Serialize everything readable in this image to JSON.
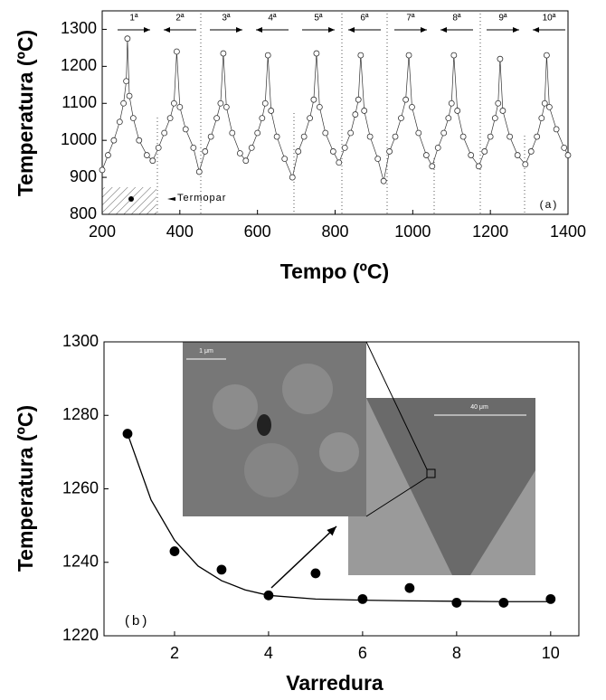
{
  "chart_data": [
    {
      "type": "line",
      "xlabel": "Tempo (ºC)",
      "ylabel": "Temperatura (ºC)",
      "xlim": [
        200,
        1400
      ],
      "ylim": [
        800,
        1350
      ],
      "xticks": [
        200,
        400,
        600,
        800,
        1000,
        1200,
        1400
      ],
      "yticks": [
        800,
        900,
        1000,
        1100,
        1200,
        1300
      ],
      "annotations": [
        "1ª",
        "2ª",
        "3ª",
        "4ª",
        "5ª",
        "6ª",
        "7ª",
        "8ª",
        "9ª",
        "10ª"
      ],
      "legend_text": "Termopar",
      "panel_label": "(a)",
      "series": [
        {
          "color": "#333333",
          "x": [
            200,
            215,
            230,
            245,
            255,
            262,
            265,
            270,
            280,
            295,
            315,
            330,
            345,
            360,
            375,
            385,
            392,
            400,
            415,
            435,
            450,
            465,
            480,
            495,
            505,
            512,
            520,
            535,
            555,
            570,
            585,
            600,
            612,
            620,
            627,
            635,
            650,
            670,
            690,
            705,
            720,
            735,
            745,
            752,
            760,
            775,
            795,
            810,
            825,
            840,
            852,
            860,
            866,
            875,
            890,
            910,
            925,
            940,
            955,
            970,
            982,
            990,
            998,
            1015,
            1035,
            1050,
            1065,
            1080,
            1092,
            1100,
            1106,
            1115,
            1130,
            1150,
            1170,
            1185,
            1200,
            1212,
            1220,
            1225,
            1232,
            1250,
            1270,
            1290,
            1305,
            1320,
            1332,
            1340,
            1345,
            1352,
            1370,
            1390,
            1400
          ],
          "values": [
            920,
            960,
            1000,
            1050,
            1100,
            1160,
            1275,
            1120,
            1060,
            1000,
            960,
            945,
            980,
            1020,
            1060,
            1100,
            1240,
            1090,
            1030,
            980,
            915,
            970,
            1010,
            1060,
            1100,
            1235,
            1090,
            1020,
            965,
            945,
            980,
            1020,
            1060,
            1100,
            1230,
            1080,
            1010,
            950,
            900,
            970,
            1010,
            1060,
            1110,
            1235,
            1090,
            1020,
            970,
            940,
            980,
            1020,
            1070,
            1110,
            1230,
            1080,
            1010,
            950,
            890,
            970,
            1010,
            1060,
            1110,
            1230,
            1090,
            1020,
            960,
            930,
            980,
            1020,
            1060,
            1100,
            1230,
            1080,
            1010,
            960,
            930,
            970,
            1010,
            1060,
            1100,
            1220,
            1080,
            1010,
            960,
            935,
            970,
            1010,
            1060,
            1100,
            1230,
            1090,
            1030,
            980,
            960
          ]
        }
      ]
    },
    {
      "type": "scatter",
      "xlabel": "Varredura",
      "ylabel": "Temperatura (ºC)",
      "xlim": [
        0.5,
        10.6
      ],
      "ylim": [
        1220,
        1300
      ],
      "xticks": [
        2,
        4,
        6,
        8,
        10
      ],
      "yticks": [
        1220,
        1240,
        1260,
        1280,
        1300
      ],
      "panel_label": "(b)",
      "inset_labels": [
        "1 μm",
        "40 μm"
      ],
      "series": [
        {
          "style": "markers",
          "color": "#000000",
          "x": [
            1,
            2,
            3,
            4,
            5,
            6,
            7,
            8,
            9,
            10
          ],
          "values": [
            1275,
            1243,
            1238,
            1231,
            1237,
            1230,
            1233,
            1229,
            1229,
            1230
          ]
        },
        {
          "style": "line",
          "color": "#000000",
          "x": [
            1,
            1.5,
            2,
            2.5,
            3,
            3.5,
            4,
            5,
            6,
            7,
            8,
            9,
            10
          ],
          "values": [
            1275,
            1257,
            1246,
            1239,
            1235,
            1232.5,
            1231,
            1230,
            1229.7,
            1229.5,
            1229.4,
            1229.3,
            1229.3
          ]
        }
      ]
    }
  ]
}
